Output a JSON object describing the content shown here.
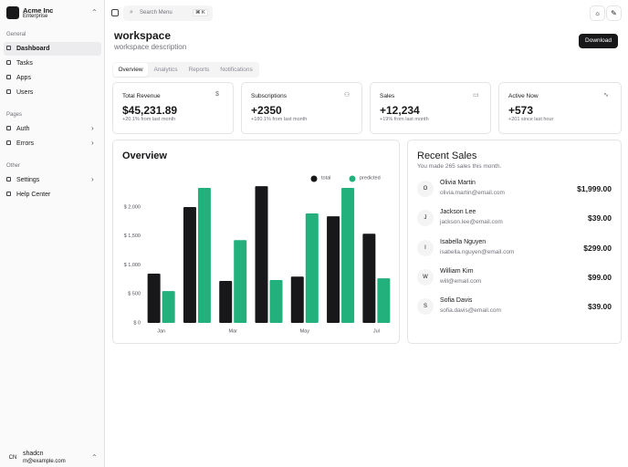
{
  "sidebar": {
    "team": {
      "name": "Acme Inc",
      "plan": "Enterprise"
    },
    "groups": [
      {
        "label": "General",
        "items": [
          "Dashboard",
          "Tasks",
          "Apps",
          "Users"
        ]
      },
      {
        "label": "Pages",
        "items": [
          "Auth",
          "Errors"
        ]
      },
      {
        "label": "Other",
        "items": [
          "Settings",
          "Help Center"
        ]
      }
    ],
    "user": {
      "initials": "CN",
      "name": "shadcn",
      "email": "m@example.com"
    }
  },
  "header": {
    "search": "Search Menu",
    "shortcut": "⌘ K"
  },
  "page": {
    "title": "workspace",
    "description": "workspace description",
    "action": "Download",
    "tabs": [
      "Overview",
      "Analytics",
      "Reports",
      "Notifications"
    ]
  },
  "cards": [
    {
      "title": "Total Revenue",
      "value": "$45,231.89",
      "note": "+20.1% from last month"
    },
    {
      "title": "Subscriptions",
      "value": "+2350",
      "note": "+180.1% from last month"
    },
    {
      "title": "Sales",
      "value": "+12,234",
      "note": "+19% from last month"
    },
    {
      "title": "Active Now",
      "value": "+573",
      "note": "+201 since last hour"
    }
  ],
  "overview": {
    "title": "Overview",
    "chart_data": {
      "type": "bar",
      "categories": [
        "Jan",
        null,
        "Mar",
        null,
        "May",
        null,
        "Jul"
      ],
      "series": [
        {
          "name": "total",
          "color": "#18181b",
          "values": [
            850,
            2000,
            725,
            2360,
            800,
            1840,
            1540
          ]
        },
        {
          "name": "predicted",
          "color": "#22b07d",
          "values": [
            550,
            2330,
            1430,
            740,
            1890,
            2330,
            770
          ]
        }
      ],
      "ylim": [
        0,
        2500
      ],
      "yticks": [
        {
          "value": 0,
          "label": "$ 0"
        },
        {
          "value": 500,
          "label": "$ 500"
        },
        {
          "value": 1000,
          "label": "$ 1,000"
        },
        {
          "value": 1500,
          "label": "$ 1,500"
        },
        {
          "value": 2000,
          "label": "$ 2,000"
        }
      ]
    }
  },
  "recent_sales": {
    "title": "Recent Sales",
    "subtitle": "You made 265 sales this month.",
    "items": [
      {
        "initials": "O",
        "name": "Olivia Martin",
        "email": "olivia.martin@email.com",
        "amount": "$1,999.00"
      },
      {
        "initials": "J",
        "name": "Jackson Lee",
        "email": "jackson.lee@email.com",
        "amount": "$39.00"
      },
      {
        "initials": "I",
        "name": "Isabella Nguyen",
        "email": "isabella.nguyen@email.com",
        "amount": "$299.00"
      },
      {
        "initials": "W",
        "name": "William Kim",
        "email": "will@email.com",
        "amount": "$99.00"
      },
      {
        "initials": "S",
        "name": "Sofia Davis",
        "email": "sofia.davis@email.com",
        "amount": "$39.00"
      }
    ]
  }
}
